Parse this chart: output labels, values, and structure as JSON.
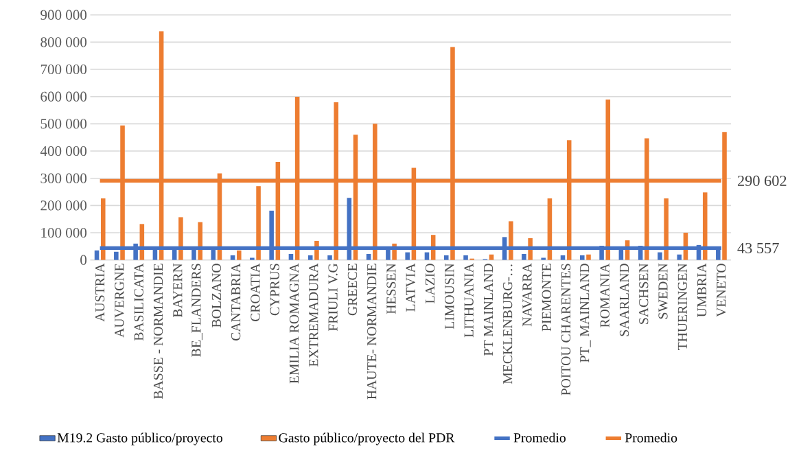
{
  "chart_data": {
    "type": "bar",
    "categories": [
      "AUSTRIA",
      "AUVERGNE",
      "BASILICATA",
      "BASSE - NORMANDIE",
      "BAYERN",
      "BE_FLANDERS",
      "BOLZANO",
      "CANTABRIA",
      "CROATIA",
      "CYPRUS",
      "EMILIA ROMAGNA",
      "EXTREMADURA",
      "FRIULI V.G",
      "GREECE",
      "HAUTE- NORMANDIE",
      "HESSEN",
      "LATVIA",
      "LAZIO",
      "LIMOUSIN",
      "LITHUANIA",
      "PT MAINLAND",
      "MECKLENBURG-…",
      "NAVARRA",
      "PIEMONTE",
      "POITOU CHARENTES",
      "PT_ MAINLAND",
      "ROMANIA",
      "SAARLAND",
      "SACHSEN",
      "SWEDEN",
      "THUERINGEN",
      "UMBRIA",
      "VENETO"
    ],
    "series": [
      {
        "name": "M19.2 Gasto público/proyecto",
        "color": "#4472c4",
        "values": [
          35000,
          30000,
          60000,
          40000,
          40000,
          40000,
          40000,
          17000,
          8000,
          181000,
          22000,
          17000,
          17000,
          228000,
          22000,
          40000,
          28000,
          28000,
          17000,
          17000,
          3000,
          84000,
          22000,
          8000,
          17000,
          17000,
          52000,
          40000,
          52000,
          28000,
          20000,
          55000,
          40000
        ]
      },
      {
        "name": "Gasto público/proyecto del PDR",
        "color": "#ed7d31",
        "values": [
          226000,
          494000,
          132000,
          840000,
          157000,
          139000,
          318000,
          35000,
          271000,
          360000,
          599000,
          70000,
          579000,
          460000,
          500000,
          60000,
          338000,
          92000,
          782000,
          5000,
          20000,
          142000,
          80000,
          226000,
          440000,
          20000,
          589000,
          72000,
          447000,
          226000,
          100000,
          248000,
          470000
        ]
      },
      {
        "name": "Promedio",
        "type": "line",
        "color": "#4472c4",
        "values": [
          43557,
          43557,
          43557,
          43557,
          43557,
          43557,
          43557,
          43557,
          43557,
          43557,
          43557,
          43557,
          43557,
          43557,
          43557,
          43557,
          43557,
          43557,
          43557,
          43557,
          43557,
          43557,
          43557,
          43557,
          43557,
          43557,
          43557,
          43557,
          43557,
          43557,
          43557,
          43557,
          43557
        ],
        "value_labels": [
          null,
          null,
          null,
          null,
          null,
          null,
          null,
          null,
          null,
          null,
          null,
          null,
          null,
          null,
          null,
          null,
          null,
          null,
          null,
          null,
          null,
          null,
          null,
          null,
          null,
          null,
          null,
          null,
          null,
          null,
          null,
          null,
          "43 557"
        ]
      },
      {
        "name": "Promedio",
        "type": "line",
        "color": "#ed7d31",
        "values": [
          290602,
          290602,
          290602,
          290602,
          290602,
          290602,
          290602,
          290602,
          290602,
          290602,
          290602,
          290602,
          290602,
          290602,
          290602,
          290602,
          290602,
          290602,
          290602,
          290602,
          290602,
          290602,
          290602,
          290602,
          290602,
          290602,
          290602,
          290602,
          290602,
          290602,
          290602,
          290602,
          290602
        ],
        "value_labels": [
          null,
          null,
          null,
          null,
          null,
          null,
          null,
          null,
          null,
          null,
          null,
          null,
          null,
          null,
          null,
          null,
          null,
          null,
          null,
          null,
          null,
          null,
          null,
          null,
          null,
          null,
          null,
          null,
          null,
          null,
          null,
          null,
          "290 602"
        ]
      }
    ],
    "ylim": [
      0,
      900000
    ],
    "yticks": [
      0,
      {
        "value": 100000,
        "label": "100 000"
      },
      {
        "value": 200000,
        "label": "200 000"
      },
      {
        "value": 300000,
        "label": "300 000"
      },
      {
        "value": 400000,
        "label": "400 000"
      },
      {
        "value": 500000,
        "label": "500 000"
      },
      {
        "value": 600000,
        "label": "600 000"
      },
      {
        "value": 700000,
        "label": "700 000"
      },
      {
        "value": 800000,
        "label": "800 000"
      },
      {
        "value": 900000,
        "label": "900 000"
      }
    ],
    "grid": "y",
    "legend": "bottom"
  }
}
